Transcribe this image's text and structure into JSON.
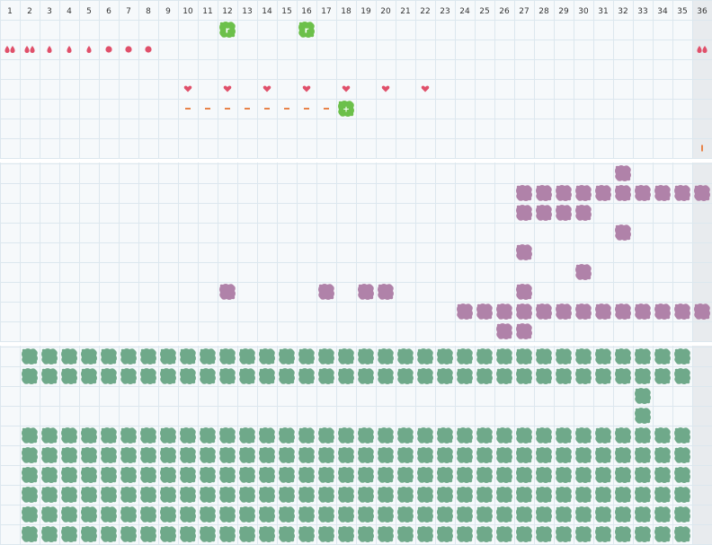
{
  "columns": [
    "1",
    "2",
    "3",
    "4",
    "5",
    "6",
    "7",
    "8",
    "9",
    "10",
    "11",
    "12",
    "13",
    "14",
    "15",
    "16",
    "17",
    "18",
    "19",
    "20",
    "21",
    "22",
    "23",
    "24",
    "25",
    "26",
    "27",
    "28",
    "29",
    "30",
    "31",
    "32",
    "33",
    "34",
    "35",
    "36"
  ],
  "colors": {
    "background": "#f6f9fb",
    "grid": "#dce7ee",
    "highlight_column": "#e8ebee",
    "drop": "#e0506a",
    "heart": "#e0506a",
    "dash": "#e8834a",
    "marker": "#e8834a",
    "green_bright": "#6cc04a",
    "purple": "#b082a9",
    "green_muted": "#6fa98a"
  },
  "highlight_column": 36,
  "top_section": {
    "bright_tiles": [
      {
        "col": 12,
        "row": 1,
        "glyph": "r"
      },
      {
        "col": 16,
        "row": 1,
        "glyph": "r"
      },
      {
        "col": 18,
        "row": 5,
        "glyph": "+"
      }
    ],
    "drops": [
      {
        "col": 1,
        "row": 2,
        "count": 2
      },
      {
        "col": 2,
        "row": 2,
        "count": 2
      },
      {
        "col": 3,
        "row": 2,
        "count": 1
      },
      {
        "col": 4,
        "row": 2,
        "count": 1
      },
      {
        "col": 5,
        "row": 2,
        "count": 1
      },
      {
        "col": 36,
        "row": 2,
        "count": 2
      }
    ],
    "dots": [
      {
        "col": 6,
        "row": 2
      },
      {
        "col": 7,
        "row": 2
      },
      {
        "col": 8,
        "row": 2
      }
    ],
    "hearts": [
      {
        "col": 10,
        "row": 4
      },
      {
        "col": 12,
        "row": 4
      },
      {
        "col": 14,
        "row": 4
      },
      {
        "col": 16,
        "row": 4
      },
      {
        "col": 18,
        "row": 4
      },
      {
        "col": 20,
        "row": 4
      },
      {
        "col": 22,
        "row": 4
      }
    ],
    "dashes": [
      {
        "col": 10,
        "row": 5
      },
      {
        "col": 11,
        "row": 5
      },
      {
        "col": 12,
        "row": 5
      },
      {
        "col": 13,
        "row": 5
      },
      {
        "col": 14,
        "row": 5
      },
      {
        "col": 15,
        "row": 5
      },
      {
        "col": 16,
        "row": 5
      },
      {
        "col": 17,
        "row": 5
      }
    ],
    "markers": [
      {
        "col": 36,
        "row": 7
      }
    ]
  },
  "middle_section": {
    "purple_tiles": [
      {
        "col": 32,
        "row": 0
      },
      {
        "col": 27,
        "row": 1
      },
      {
        "col": 28,
        "row": 1
      },
      {
        "col": 29,
        "row": 1
      },
      {
        "col": 30,
        "row": 1
      },
      {
        "col": 31,
        "row": 1
      },
      {
        "col": 32,
        "row": 1
      },
      {
        "col": 33,
        "row": 1
      },
      {
        "col": 34,
        "row": 1
      },
      {
        "col": 35,
        "row": 1
      },
      {
        "col": 36,
        "row": 1
      },
      {
        "col": 27,
        "row": 2
      },
      {
        "col": 28,
        "row": 2
      },
      {
        "col": 29,
        "row": 2
      },
      {
        "col": 30,
        "row": 2
      },
      {
        "col": 32,
        "row": 3
      },
      {
        "col": 27,
        "row": 4
      },
      {
        "col": 30,
        "row": 5
      },
      {
        "col": 12,
        "row": 6
      },
      {
        "col": 17,
        "row": 6
      },
      {
        "col": 19,
        "row": 6
      },
      {
        "col": 20,
        "row": 6
      },
      {
        "col": 27,
        "row": 6
      },
      {
        "col": 24,
        "row": 7
      },
      {
        "col": 25,
        "row": 7
      },
      {
        "col": 26,
        "row": 7
      },
      {
        "col": 27,
        "row": 7
      },
      {
        "col": 28,
        "row": 7
      },
      {
        "col": 29,
        "row": 7
      },
      {
        "col": 30,
        "row": 7
      },
      {
        "col": 31,
        "row": 7
      },
      {
        "col": 32,
        "row": 7
      },
      {
        "col": 33,
        "row": 7
      },
      {
        "col": 34,
        "row": 7
      },
      {
        "col": 35,
        "row": 7
      },
      {
        "col": 36,
        "row": 7
      },
      {
        "col": 26,
        "row": 8
      },
      {
        "col": 27,
        "row": 8
      }
    ]
  },
  "bottom_section": {
    "full_rows": [
      0,
      1,
      4,
      5,
      6,
      7,
      8,
      9
    ],
    "full_row_cols": [
      2,
      35
    ],
    "single_tiles": [
      {
        "col": 33,
        "row": 2
      },
      {
        "col": 33,
        "row": 3
      }
    ]
  }
}
